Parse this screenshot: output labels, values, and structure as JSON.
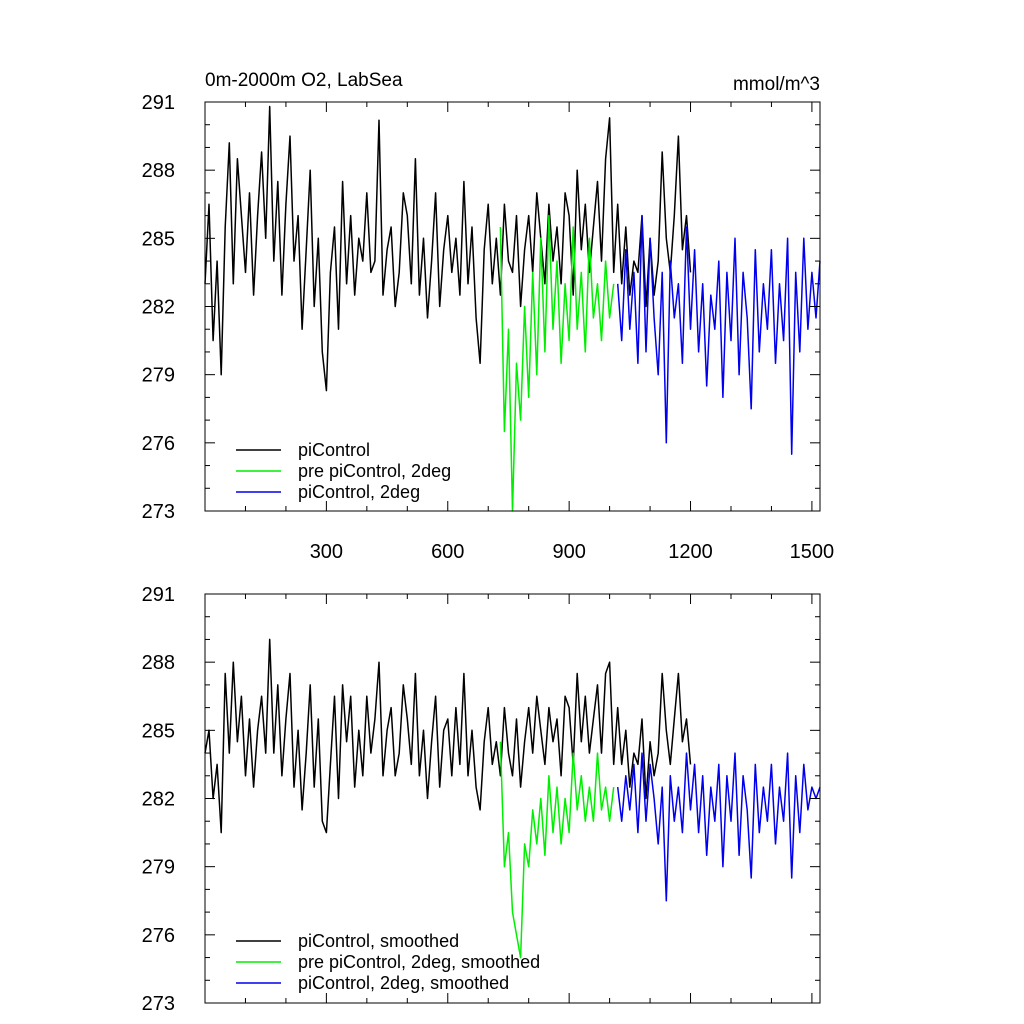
{
  "chart_data": [
    {
      "type": "line",
      "title": "0m-2000m O2, LabSea",
      "units": "mmol/m^3",
      "xlim": [
        0,
        1520
      ],
      "ylim": [
        273,
        291
      ],
      "xticks": [
        300,
        600,
        900,
        1200,
        1500
      ],
      "xtick_labels": [
        "300",
        "600",
        "900",
        "1200",
        "1500"
      ],
      "yticks": [
        273,
        276,
        279,
        282,
        285,
        288,
        291
      ],
      "ytick_labels": [
        "273",
        "276",
        "279",
        "282",
        "285",
        "288",
        "291"
      ],
      "legend_position": "bottom-left",
      "series": [
        {
          "name": "piControl",
          "color": "#000000",
          "x": [
            0,
            10,
            20,
            30,
            40,
            50,
            60,
            70,
            80,
            90,
            100,
            110,
            120,
            130,
            140,
            150,
            160,
            170,
            180,
            190,
            200,
            210,
            220,
            230,
            240,
            250,
            260,
            270,
            280,
            290,
            300,
            310,
            320,
            330,
            340,
            350,
            360,
            370,
            380,
            390,
            400,
            410,
            420,
            430,
            440,
            450,
            460,
            470,
            480,
            490,
            500,
            510,
            520,
            530,
            540,
            550,
            560,
            570,
            580,
            590,
            600,
            610,
            620,
            630,
            640,
            650,
            660,
            670,
            680,
            690,
            700,
            710,
            720,
            730,
            740,
            750,
            760,
            770,
            780,
            790,
            800,
            810,
            820,
            830,
            840,
            850,
            860,
            870,
            880,
            890,
            900,
            910,
            920,
            930,
            940,
            950,
            960,
            970,
            980,
            990,
            1000,
            1010,
            1020,
            1030,
            1040,
            1050,
            1060,
            1070,
            1080,
            1090,
            1100,
            1110,
            1120,
            1130,
            1140,
            1150,
            1160,
            1170,
            1180,
            1190,
            1200
          ],
          "values": [
            283.0,
            286.5,
            280.5,
            284.0,
            279.0,
            285.5,
            289.2,
            283.0,
            288.5,
            286.0,
            283.5,
            287.0,
            282.5,
            286.0,
            288.8,
            285.0,
            290.8,
            284.0,
            287.5,
            282.5,
            286.5,
            289.5,
            284.0,
            286.0,
            281.0,
            284.5,
            288.0,
            282.0,
            285.0,
            280.0,
            278.3,
            283.5,
            285.5,
            281.0,
            287.5,
            283.0,
            286.0,
            282.5,
            285.0,
            284.0,
            287.0,
            283.5,
            284.0,
            290.2,
            282.5,
            284.5,
            285.5,
            282.0,
            283.5,
            287.0,
            286.0,
            283.0,
            288.5,
            282.5,
            285.0,
            281.5,
            284.0,
            287.0,
            282.0,
            284.5,
            286.0,
            283.5,
            285.0,
            282.5,
            287.5,
            283.0,
            285.5,
            281.5,
            279.5,
            284.5,
            286.5,
            283.0,
            285.0,
            282.5,
            286.5,
            284.0,
            283.5,
            286.0,
            282.0,
            284.5,
            286.0,
            283.5,
            287.0,
            285.0,
            283.0,
            286.5,
            284.0,
            285.5,
            283.0,
            287.0,
            286.0,
            282.5,
            288.0,
            284.5,
            286.5,
            283.5,
            285.5,
            287.5,
            284.0,
            288.5,
            290.3,
            283.5,
            286.5,
            283.0,
            285.5,
            282.5,
            284.0,
            283.5,
            286.0,
            282.0,
            285.0,
            282.5,
            284.0,
            288.8,
            285.0,
            283.5,
            286.0,
            289.5,
            284.5,
            286.0,
            283.5
          ]
        },
        {
          "name": "pre piControl, 2deg",
          "color": "#00ee00",
          "x": [
            730,
            740,
            750,
            760,
            770,
            780,
            790,
            800,
            810,
            820,
            830,
            840,
            850,
            860,
            870,
            880,
            890,
            900,
            910,
            920,
            930,
            940,
            950,
            960,
            970,
            980,
            990,
            1000,
            1010
          ],
          "values": [
            285.5,
            276.5,
            281.0,
            273.0,
            279.5,
            277.0,
            282.0,
            278.0,
            283.5,
            279.0,
            285.0,
            280.0,
            286.0,
            281.0,
            284.0,
            279.5,
            283.0,
            280.5,
            285.5,
            281.0,
            283.5,
            280.0,
            285.0,
            281.5,
            283.0,
            280.5,
            284.0,
            281.5,
            283.0
          ]
        },
        {
          "name": "piControl, 2deg",
          "color": "#0000ee",
          "x": [
            1020,
            1030,
            1040,
            1050,
            1060,
            1070,
            1080,
            1090,
            1100,
            1110,
            1120,
            1130,
            1140,
            1150,
            1160,
            1170,
            1180,
            1190,
            1200,
            1210,
            1220,
            1230,
            1240,
            1250,
            1260,
            1270,
            1280,
            1290,
            1300,
            1310,
            1320,
            1330,
            1340,
            1350,
            1360,
            1370,
            1380,
            1390,
            1400,
            1410,
            1420,
            1430,
            1440,
            1450,
            1460,
            1470,
            1480,
            1490,
            1500,
            1510,
            1520
          ],
          "values": [
            283.0,
            280.5,
            284.5,
            281.0,
            283.5,
            279.5,
            286.0,
            280.0,
            285.0,
            281.5,
            279.0,
            283.5,
            276.0,
            284.0,
            281.5,
            283.0,
            279.5,
            285.5,
            281.0,
            284.5,
            280.0,
            283.0,
            278.5,
            282.5,
            281.0,
            284.0,
            278.0,
            283.5,
            280.5,
            285.0,
            279.0,
            283.5,
            281.5,
            277.5,
            284.5,
            280.0,
            283.0,
            281.0,
            284.5,
            279.5,
            283.0,
            280.5,
            285.0,
            275.5,
            283.5,
            280.0,
            285.0,
            281.0,
            283.5,
            281.5,
            284.0
          ]
        }
      ]
    },
    {
      "type": "line",
      "xlim": [
        0,
        1520
      ],
      "ylim": [
        273,
        291
      ],
      "xticks": [
        300,
        600,
        900,
        1200,
        1500
      ],
      "yticks": [
        273,
        276,
        279,
        282,
        285,
        288,
        291
      ],
      "ytick_labels": [
        "273",
        "276",
        "279",
        "282",
        "285",
        "288",
        "291"
      ],
      "legend_position": "bottom-left",
      "series": [
        {
          "name": "piControl, smoothed",
          "color": "#000000",
          "x": [
            0,
            10,
            20,
            30,
            40,
            50,
            60,
            70,
            80,
            90,
            100,
            110,
            120,
            130,
            140,
            150,
            160,
            170,
            180,
            190,
            200,
            210,
            220,
            230,
            240,
            250,
            260,
            270,
            280,
            290,
            300,
            310,
            320,
            330,
            340,
            350,
            360,
            370,
            380,
            390,
            400,
            410,
            420,
            430,
            440,
            450,
            460,
            470,
            480,
            490,
            500,
            510,
            520,
            530,
            540,
            550,
            560,
            570,
            580,
            590,
            600,
            610,
            620,
            630,
            640,
            650,
            660,
            670,
            680,
            690,
            700,
            710,
            720,
            730,
            740,
            750,
            760,
            770,
            780,
            790,
            800,
            810,
            820,
            830,
            840,
            850,
            860,
            870,
            880,
            890,
            900,
            910,
            920,
            930,
            940,
            950,
            960,
            970,
            980,
            990,
            1000,
            1010,
            1020,
            1030,
            1040,
            1050,
            1060,
            1070,
            1080,
            1090,
            1100,
            1110,
            1120,
            1130,
            1140,
            1150,
            1160,
            1170,
            1180,
            1190,
            1200
          ],
          "values": [
            284.0,
            285.0,
            282.0,
            283.5,
            280.5,
            287.5,
            284.0,
            288.0,
            284.5,
            286.5,
            283.0,
            285.5,
            282.5,
            285.0,
            286.5,
            284.0,
            289.0,
            284.0,
            287.0,
            283.0,
            285.5,
            287.5,
            282.5,
            285.0,
            281.5,
            284.0,
            287.0,
            282.5,
            285.5,
            281.0,
            280.5,
            283.5,
            286.5,
            282.0,
            287.0,
            284.5,
            286.5,
            282.5,
            285.0,
            283.0,
            286.5,
            284.0,
            285.5,
            288.0,
            283.0,
            285.0,
            286.0,
            283.0,
            284.0,
            287.0,
            285.5,
            283.5,
            287.5,
            283.0,
            285.0,
            282.0,
            284.5,
            286.5,
            282.5,
            285.0,
            285.5,
            283.0,
            286.0,
            283.5,
            287.5,
            283.0,
            285.0,
            282.5,
            281.5,
            284.5,
            286.0,
            283.5,
            284.5,
            283.0,
            286.0,
            284.0,
            283.0,
            285.5,
            282.5,
            284.5,
            286.0,
            284.0,
            286.5,
            285.0,
            283.5,
            286.0,
            284.5,
            285.5,
            283.0,
            286.5,
            286.0,
            283.5,
            287.5,
            284.5,
            286.5,
            284.0,
            285.5,
            287.0,
            284.0,
            287.5,
            288.0,
            283.5,
            286.0,
            283.5,
            285.0,
            282.5,
            284.0,
            283.5,
            285.5,
            282.0,
            284.5,
            283.0,
            284.0,
            287.5,
            285.0,
            283.5,
            285.5,
            287.5,
            284.5,
            285.5,
            283.5
          ]
        },
        {
          "name": "pre piControl, 2deg, smoothed",
          "color": "#00ee00",
          "x": [
            730,
            740,
            750,
            760,
            770,
            780,
            790,
            800,
            810,
            820,
            830,
            840,
            850,
            860,
            870,
            880,
            890,
            900,
            910,
            920,
            930,
            940,
            950,
            960,
            970,
            980,
            990,
            1000,
            1010
          ],
          "values": [
            284.5,
            279.0,
            280.5,
            277.0,
            276.0,
            275.0,
            280.0,
            279.0,
            281.5,
            280.0,
            282.0,
            279.5,
            283.0,
            280.5,
            282.5,
            280.0,
            282.0,
            280.5,
            284.0,
            281.5,
            283.0,
            281.0,
            282.5,
            281.0,
            284.0,
            281.5,
            282.5,
            281.0,
            282.5
          ]
        },
        {
          "name": "piControl, 2deg, smoothed",
          "color": "#0000ee",
          "x": [
            1020,
            1030,
            1040,
            1050,
            1060,
            1070,
            1080,
            1090,
            1100,
            1110,
            1120,
            1130,
            1140,
            1150,
            1160,
            1170,
            1180,
            1190,
            1200,
            1210,
            1220,
            1230,
            1240,
            1250,
            1260,
            1270,
            1280,
            1290,
            1300,
            1310,
            1320,
            1330,
            1340,
            1350,
            1360,
            1370,
            1380,
            1390,
            1400,
            1410,
            1420,
            1430,
            1440,
            1450,
            1460,
            1470,
            1480,
            1490,
            1500,
            1510,
            1520
          ],
          "values": [
            282.5,
            281.0,
            283.0,
            281.5,
            283.5,
            280.5,
            284.0,
            281.0,
            283.5,
            282.0,
            280.0,
            282.5,
            277.5,
            283.0,
            281.0,
            282.5,
            280.5,
            284.0,
            281.5,
            283.5,
            280.5,
            283.0,
            279.5,
            282.5,
            281.0,
            283.5,
            279.0,
            283.0,
            281.0,
            284.0,
            279.5,
            283.0,
            281.5,
            278.5,
            283.5,
            280.5,
            282.5,
            281.0,
            283.5,
            280.0,
            282.5,
            281.0,
            284.0,
            278.5,
            283.0,
            280.5,
            283.5,
            281.5,
            282.5,
            282.0,
            282.5
          ]
        }
      ]
    }
  ]
}
